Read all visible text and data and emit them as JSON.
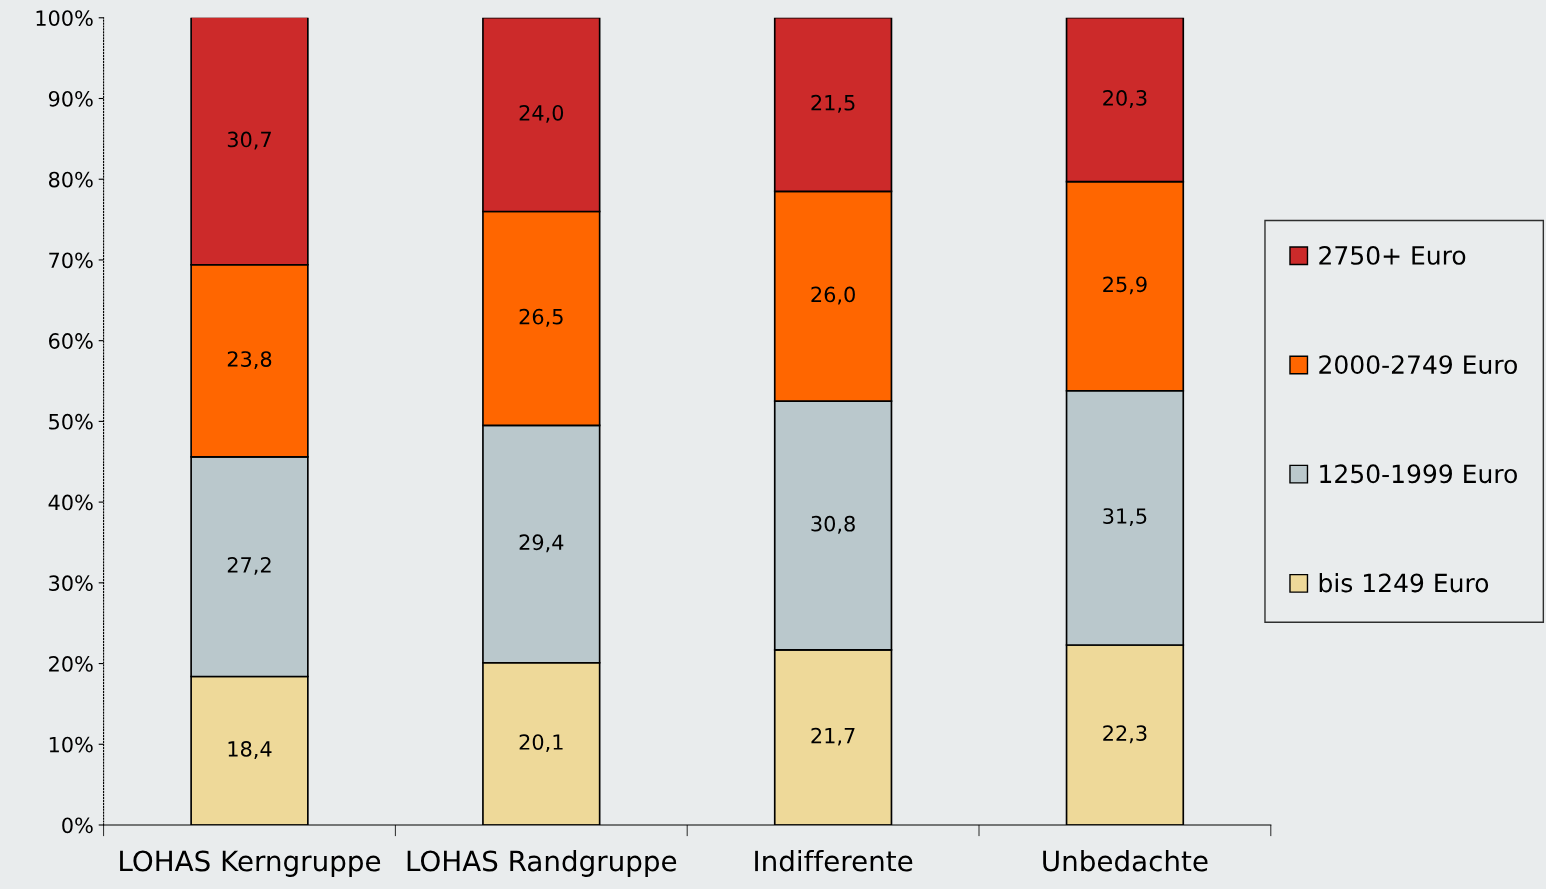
{
  "chart_data": {
    "type": "bar",
    "stacked": true,
    "categories": [
      "LOHAS Kerngruppe",
      "LOHAS Randgruppe",
      "Indifferente",
      "Unbedachte"
    ],
    "series": [
      {
        "name": "bis 1249 Euro",
        "color": "#eed999",
        "values": [
          18.4,
          20.1,
          21.7,
          22.3
        ],
        "value_labels": [
          "18,4",
          "20,1",
          "21,7",
          "22,3"
        ]
      },
      {
        "name": "1250-1999 Euro",
        "color": "#bac8cc",
        "values": [
          27.2,
          29.4,
          30.8,
          31.5
        ],
        "value_labels": [
          "27,2",
          "29,4",
          "30,8",
          "31,5"
        ]
      },
      {
        "name": "2000-2749 Euro",
        "color": "#ff6600",
        "values": [
          23.8,
          26.5,
          26.0,
          25.9
        ],
        "value_labels": [
          "23,8",
          "26,5",
          "26,0",
          "25,9"
        ]
      },
      {
        "name": "2750+ Euro",
        "color": "#cc2a2a",
        "values": [
          30.7,
          24.0,
          21.5,
          20.3
        ],
        "value_labels": [
          "30,7",
          "24,0",
          "21,5",
          "20,3"
        ]
      }
    ],
    "ylim": [
      0,
      100
    ],
    "yticks": [
      {
        "value": 0,
        "label": "0%"
      },
      {
        "value": 10,
        "label": "10%"
      },
      {
        "value": 20,
        "label": "20%"
      },
      {
        "value": 30,
        "label": "30%"
      },
      {
        "value": 40,
        "label": "40%"
      },
      {
        "value": 50,
        "label": "50%"
      },
      {
        "value": 60,
        "label": "60%"
      },
      {
        "value": 70,
        "label": "70%"
      },
      {
        "value": 80,
        "label": "80%"
      },
      {
        "value": 90,
        "label": "90%"
      },
      {
        "value": 100,
        "label": "100%"
      }
    ],
    "grid": false,
    "legend": "right"
  }
}
